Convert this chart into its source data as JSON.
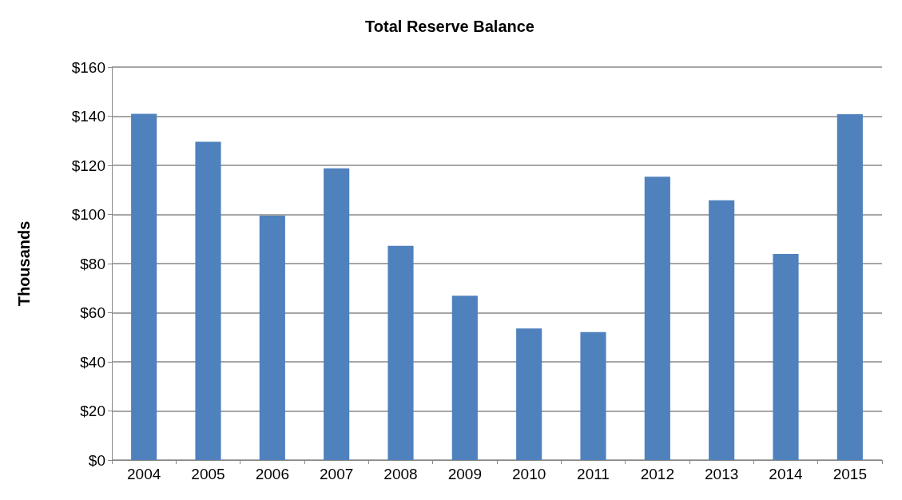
{
  "chart_data": {
    "type": "bar",
    "title": "Total Reserve Balance",
    "ylabel": "Thousands",
    "categories": [
      "2004",
      "2005",
      "2006",
      "2007",
      "2008",
      "2009",
      "2010",
      "2011",
      "2012",
      "2013",
      "2014",
      "2015"
    ],
    "values": [
      141,
      129.6,
      99.5,
      118.8,
      87.2,
      66.9,
      53.6,
      52.1,
      115.4,
      105.8,
      83.9,
      140.8
    ],
    "color": "#4f81bd",
    "ylim": [
      0,
      160
    ],
    "yticks": [
      {
        "value": 0,
        "label": "$0"
      },
      {
        "value": 20,
        "label": "$20"
      },
      {
        "value": 40,
        "label": "$40"
      },
      {
        "value": 60,
        "label": "$60"
      },
      {
        "value": 80,
        "label": "$80"
      },
      {
        "value": 100,
        "label": "$100"
      },
      {
        "value": 120,
        "label": "$120"
      },
      {
        "value": 140,
        "label": "$140"
      },
      {
        "value": 160,
        "label": "$160"
      }
    ],
    "grid": true
  }
}
